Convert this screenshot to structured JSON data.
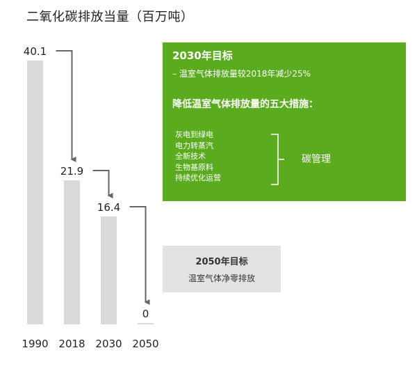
{
  "title": "二氧化碳排放当量（百万吨）",
  "chart_data": {
    "type": "bar",
    "categories": [
      "1990",
      "2018",
      "2030",
      "2050"
    ],
    "values": [
      40.1,
      21.9,
      16.4,
      0
    ],
    "value_labels": [
      "40.1",
      "21.9",
      "16.4",
      "0"
    ],
    "ylim": [
      0,
      40.1
    ],
    "grid": false,
    "legend": "none",
    "colors": {
      "bar": "#d9d9d9",
      "arrow": "#666666"
    }
  },
  "goal_2030": {
    "heading": "2030年目标",
    "subtitle": "– 温室气体排放量较2018年减少25%",
    "measures_title": "降低温室气体排放量的五大措施：",
    "measures": [
      "灰电到绿电",
      "电力转蒸汽",
      "全新技术",
      "生物基原料",
      "持续优化运营"
    ],
    "brace_label": "碳管理",
    "color": "#5aac1e"
  },
  "goal_2050": {
    "heading": "2050年目标",
    "subtitle": "温室气体净零排放",
    "color": "#e3e3e3"
  }
}
